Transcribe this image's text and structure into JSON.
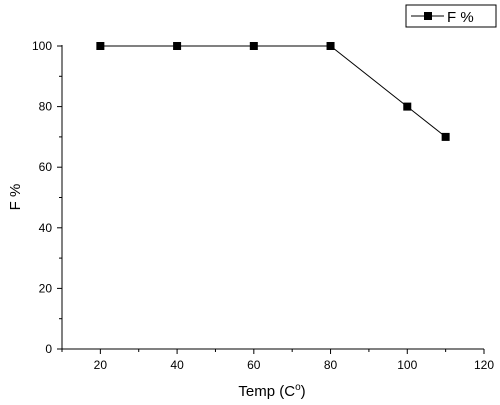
{
  "chart_data": {
    "type": "line",
    "title": "",
    "xlabel": "Temp (C",
    "xlabel_superscript": "o",
    "xlabel_suffix": ")",
    "ylabel": "F  %",
    "xlim": [
      10,
      120
    ],
    "ylim": [
      0,
      105
    ],
    "x_ticks": [
      20,
      40,
      60,
      80,
      100,
      120
    ],
    "y_ticks": [
      0,
      20,
      40,
      60,
      80,
      100
    ],
    "grid": false,
    "legend_position": "top-right",
    "series": [
      {
        "name": "F  %",
        "color": "#000000",
        "marker": "square",
        "x": [
          20,
          40,
          60,
          80,
          100,
          110
        ],
        "y": [
          100,
          100,
          100,
          100,
          80,
          70
        ]
      }
    ]
  }
}
